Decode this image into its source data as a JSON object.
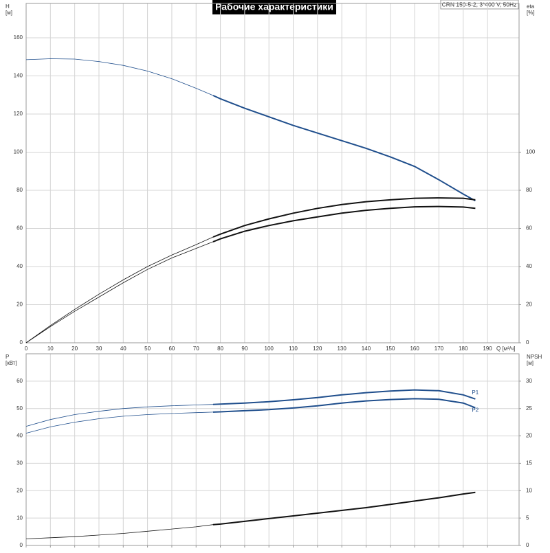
{
  "chart_data": [
    {
      "type": "line",
      "title": "Рабочие характеристики",
      "subtitle": "CRN 150-5-2, 3*400 V, 50Hz",
      "ylabel": "H",
      "yunit": "[м]",
      "y2label": "eta",
      "y2unit": "[%]",
      "xlabel": "Q [м³/ч]",
      "x": [
        0,
        10,
        20,
        30,
        40,
        50,
        60,
        70,
        77,
        80,
        90,
        100,
        110,
        120,
        130,
        140,
        150,
        160,
        170,
        180,
        185
      ],
      "xlim": [
        0,
        203
      ],
      "xticks": [
        0,
        10,
        20,
        30,
        40,
        50,
        60,
        70,
        80,
        90,
        100,
        110,
        120,
        130,
        140,
        150,
        160,
        170,
        180,
        190
      ],
      "ylim": [
        0,
        178
      ],
      "yticks": [
        0,
        20,
        40,
        60,
        80,
        100,
        120,
        140,
        160
      ],
      "y2lim": [
        0,
        178
      ],
      "y2ticks": [
        0,
        20,
        40,
        60,
        80,
        100
      ],
      "grid": true,
      "operating_start": 77,
      "series": [
        {
          "color": "#1f4e8c",
          "values": [
            148.5,
            149,
            148.8,
            147.5,
            145.5,
            142.5,
            138.5,
            133.5,
            129.7,
            128,
            123,
            118.5,
            114,
            110,
            106,
            102,
            97.5,
            92.5,
            85.5,
            78,
            74.5
          ]
        },
        {
          "color": "#111111",
          "axis": "y2",
          "values": [
            0,
            9,
            17.5,
            25.5,
            33,
            40,
            46,
            51.5,
            55.5,
            57,
            61.5,
            65,
            68,
            70.5,
            72.5,
            74,
            75,
            75.8,
            76,
            75.8,
            75
          ]
        },
        {
          "color": "#111111",
          "axis": "y2",
          "values": [
            0,
            8.5,
            16.5,
            24,
            31.5,
            38.5,
            44.5,
            49.5,
            53,
            54.5,
            58.5,
            61.5,
            64,
            66,
            68,
            69.5,
            70.5,
            71.3,
            71.5,
            71.2,
            70.5
          ]
        }
      ]
    },
    {
      "type": "line",
      "ylabel": "P",
      "yunit": "[кВт]",
      "y2label": "NPSH",
      "y2unit": "[м]",
      "x": [
        0,
        10,
        20,
        30,
        40,
        50,
        60,
        70,
        77,
        80,
        90,
        100,
        110,
        120,
        130,
        140,
        150,
        160,
        170,
        180,
        185
      ],
      "xlim": [
        0,
        203
      ],
      "xticks": [
        0,
        10,
        20,
        30,
        40,
        50,
        60,
        70,
        80,
        90,
        100,
        110,
        120,
        130,
        140,
        150,
        160,
        170,
        180,
        190
      ],
      "ylim": [
        0,
        70
      ],
      "yticks": [
        0,
        10,
        20,
        30,
        40,
        50,
        60
      ],
      "y2lim": [
        0,
        35
      ],
      "y2ticks": [
        0,
        5,
        10,
        15,
        20,
        25,
        30
      ],
      "grid": true,
      "operating_start": 77,
      "series": [
        {
          "name": "P1",
          "color": "#1f4e8c",
          "values": [
            43.5,
            46,
            47.8,
            49,
            50,
            50.6,
            51,
            51.3,
            51.5,
            51.6,
            52,
            52.5,
            53.2,
            54,
            55,
            55.8,
            56.4,
            56.8,
            56.5,
            55,
            53.5
          ]
        },
        {
          "name": "P2",
          "color": "#1f4e8c",
          "values": [
            41,
            43.3,
            45,
            46.3,
            47.2,
            47.8,
            48.2,
            48.5,
            48.7,
            48.8,
            49.2,
            49.6,
            50.2,
            51,
            52,
            52.8,
            53.3,
            53.6,
            53.4,
            52,
            50.3
          ]
        },
        {
          "color": "#111111",
          "axis": "y2",
          "values": [
            1.2,
            1.4,
            1.6,
            1.9,
            2.2,
            2.6,
            3,
            3.4,
            3.8,
            3.9,
            4.4,
            4.9,
            5.4,
            5.9,
            6.4,
            6.9,
            7.5,
            8.1,
            8.7,
            9.4,
            9.7
          ]
        }
      ]
    }
  ]
}
